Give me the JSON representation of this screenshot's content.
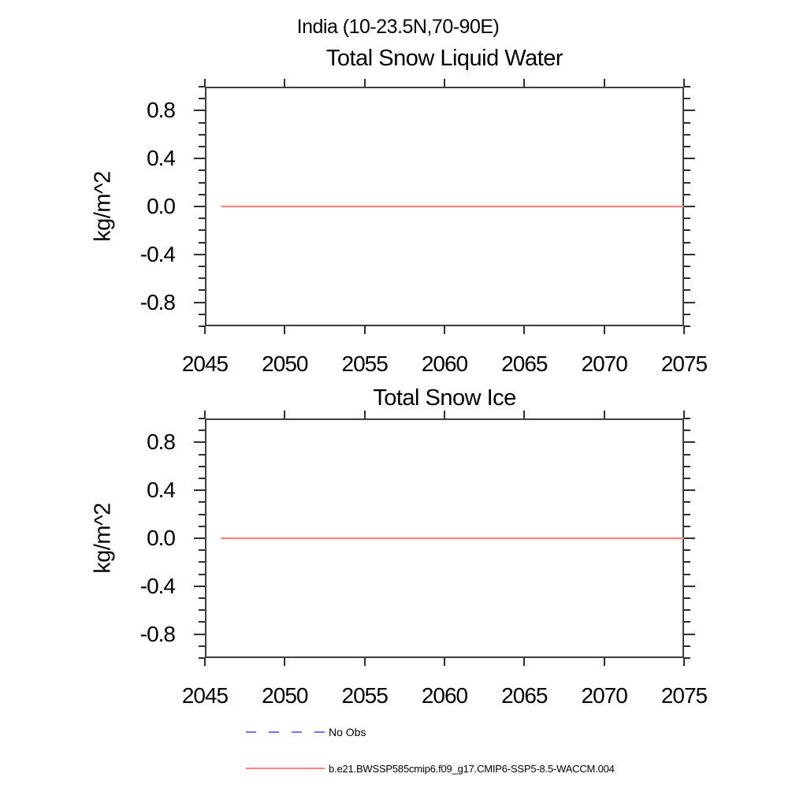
{
  "figure": {
    "suptitle": "India (10-23.5N,70-90E)"
  },
  "colors": {
    "axis": "#3f3f3f",
    "tick": "#2e2e2e",
    "text": "#000000",
    "model_line": "#ff8282",
    "no_obs_line": "#7474e4",
    "background": "#ffffff"
  },
  "chart_data": [
    {
      "type": "line",
      "title": "Total Snow Liquid Water",
      "xlabel": "",
      "ylabel": "kg/m^2",
      "xlim": [
        2045,
        2075
      ],
      "ylim": [
        -1.0,
        1.0
      ],
      "grid": false,
      "x_tick_values": [
        2045,
        2050,
        2055,
        2060,
        2065,
        2070,
        2075
      ],
      "x_tick_labels": [
        "2045",
        "2050",
        "2055",
        "2060",
        "2065",
        "2070",
        "2075"
      ],
      "y_tick_values": [
        0.8,
        0.4,
        0.0,
        -0.4,
        -0.8
      ],
      "y_tick_labels": [
        "0.8",
        "0.4",
        "0.0",
        "-0.4",
        "-0.8"
      ],
      "y_minor_step": 0.1,
      "series": [
        {
          "name": "b.e21.BWSSP585cmip6.f09_g17.CMIP6-SSP5-8.5-WACCM.004",
          "color": "#ff8282",
          "x": [
            2046,
            2075
          ],
          "y": [
            0.0,
            0.0
          ]
        }
      ]
    },
    {
      "type": "line",
      "title": "Total Snow Ice",
      "xlabel": "",
      "ylabel": "kg/m^2",
      "xlim": [
        2045,
        2075
      ],
      "ylim": [
        -1.0,
        1.0
      ],
      "grid": false,
      "x_tick_values": [
        2045,
        2050,
        2055,
        2060,
        2065,
        2070,
        2075
      ],
      "x_tick_labels": [
        "2045",
        "2050",
        "2055",
        "2060",
        "2065",
        "2070",
        "2075"
      ],
      "y_tick_values": [
        0.8,
        0.4,
        0.0,
        -0.4,
        -0.8
      ],
      "y_tick_labels": [
        "0.8",
        "0.4",
        "0.0",
        "-0.4",
        "-0.8"
      ],
      "y_minor_step": 0.1,
      "series": [
        {
          "name": "b.e21.BWSSP585cmip6.f09_g17.CMIP6-SSP5-8.5-WACCM.004",
          "color": "#ff8282",
          "x": [
            2046,
            2075
          ],
          "y": [
            0.0,
            0.0
          ]
        }
      ]
    }
  ],
  "legend": {
    "position": "bottom-left",
    "items": [
      {
        "label": "No Obs",
        "color": "#7474e4",
        "style": "dashed"
      },
      {
        "label": "b.e21.BWSSP585cmip6.f09_g17.CMIP6-SSP5-8.5-WACCM.004",
        "color": "#ff8282",
        "style": "solid"
      }
    ]
  }
}
